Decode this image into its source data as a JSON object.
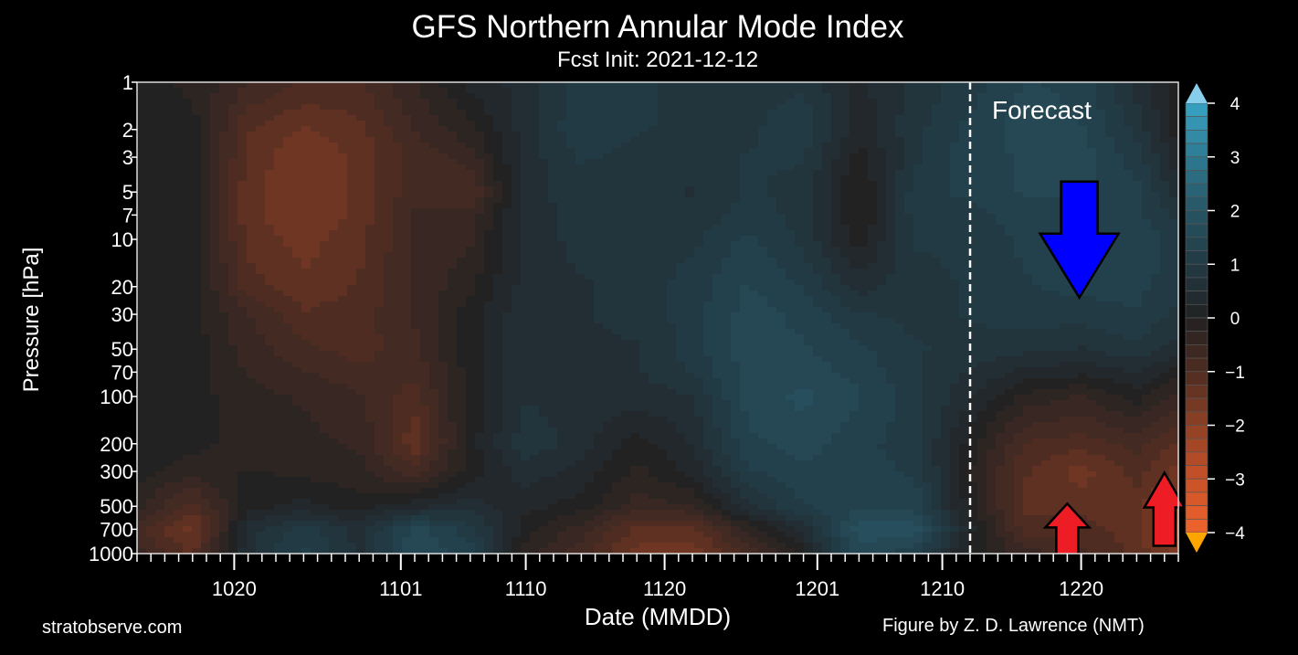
{
  "chart_data": {
    "type": "heatmap",
    "title": "GFS Northern Annular Mode Index",
    "subtitle": "Fcst Init: 2021-12-12",
    "xlabel": "Date (MMDD)",
    "ylabel": "Pressure [hPa]",
    "x_range": [
      "1013",
      "1227"
    ],
    "x_tick_labels": [
      "1020",
      "1101",
      "1110",
      "1120",
      "1201",
      "1210",
      "1220"
    ],
    "y_scale": "log",
    "y_range": [
      1000,
      1
    ],
    "y_tick_labels": [
      "1",
      "2",
      "3",
      "5",
      "7",
      "10",
      "20",
      "30",
      "50",
      "70",
      "100",
      "200",
      "300",
      "500",
      "700",
      "1000"
    ],
    "levels": [
      1,
      2,
      3,
      5,
      7,
      10,
      20,
      30,
      50,
      70,
      100,
      200,
      300,
      500,
      700,
      1000
    ],
    "dates": [
      "1013",
      "1017",
      "1021",
      "1025",
      "1029",
      "1102",
      "1106",
      "1110",
      "1114",
      "1118",
      "1122",
      "1126",
      "1130",
      "1204",
      "1208",
      "1212",
      "1216",
      "1220",
      "1224",
      "1227"
    ],
    "values_by_date": [
      [
        0,
        0,
        0,
        0,
        0,
        0,
        0,
        0,
        0,
        0,
        0,
        0,
        0,
        -0.3,
        -0.8,
        -0.5
      ],
      [
        -0.2,
        0,
        0,
        0,
        0,
        0,
        0,
        0,
        0,
        0,
        0,
        0,
        -0.3,
        -1,
        -1.5,
        -1.2
      ],
      [
        -0.6,
        -1.1,
        -1.2,
        -1.3,
        -1.3,
        -1.2,
        -1,
        -0.6,
        -0.5,
        -0.4,
        -0.3,
        -0.3,
        -0.1,
        0,
        0.5,
        0.6
      ],
      [
        -0.9,
        -1.4,
        -1.6,
        -1.6,
        -1.6,
        -1.5,
        -1.3,
        -1.1,
        -0.8,
        -0.6,
        -0.4,
        -0.3,
        -0.2,
        0.2,
        1,
        1.2
      ],
      [
        -0.9,
        -1.2,
        -1.3,
        -1.3,
        -1.3,
        -1.2,
        -1.1,
        -1,
        -1,
        -0.8,
        -0.6,
        -0.4,
        -0.3,
        0,
        0.5,
        0.6
      ],
      [
        -0.4,
        -0.6,
        -0.8,
        -0.7,
        -0.6,
        -0.6,
        -0.6,
        -0.6,
        -0.7,
        -0.8,
        -1,
        -1.3,
        -0.8,
        0.3,
        1.5,
        1.6
      ],
      [
        0.2,
        -0.2,
        -0.5,
        -0.9,
        -0.5,
        -0.4,
        -0.2,
        0,
        0,
        0,
        0,
        0,
        0,
        0.5,
        1,
        1.2
      ],
      [
        0.5,
        0.5,
        0.5,
        0.5,
        0.5,
        0.5,
        0.5,
        0.6,
        0.6,
        0.6,
        0.6,
        0.8,
        0.5,
        0.2,
        0,
        -0.3
      ],
      [
        1,
        1.1,
        0.9,
        0.8,
        0.7,
        0.7,
        0.6,
        0.6,
        0.6,
        0.5,
        0.5,
        0.5,
        0.3,
        0,
        -0.5,
        -0.8
      ],
      [
        1.1,
        0.9,
        0.8,
        0.8,
        0.8,
        0.8,
        0.7,
        0.7,
        0.6,
        0.6,
        0.5,
        0,
        -0.2,
        -0.5,
        -1.2,
        -1.5
      ],
      [
        0.6,
        0.8,
        0.7,
        0.6,
        0.7,
        0.8,
        1,
        1,
        1,
        0.9,
        0.6,
        0.4,
        0.2,
        -0.4,
        -1.2,
        -1.6
      ],
      [
        0.8,
        0.8,
        0.9,
        0.9,
        1,
        1.2,
        1.4,
        1.5,
        1.5,
        1.5,
        1.5,
        1.3,
        1.1,
        0.6,
        -0.3,
        -0.8
      ],
      [
        0.8,
        1.1,
        0.9,
        0.8,
        0.8,
        0.8,
        1.1,
        1.3,
        1.4,
        1.5,
        1.7,
        1.5,
        1.3,
        1.1,
        0.5,
        0
      ],
      [
        0.3,
        0.2,
        0,
        -0.2,
        -0.2,
        0,
        0.5,
        0.9,
        1.2,
        1.3,
        1.4,
        1.2,
        1.2,
        1.3,
        1.8,
        1.5
      ],
      [
        0.7,
        0.8,
        0.8,
        1,
        1,
        0.9,
        0.8,
        0.8,
        0.9,
        0.9,
        1,
        1,
        1.1,
        1.3,
        1.8,
        1.2
      ],
      [
        1,
        1.2,
        1.3,
        1.2,
        1,
        0.9,
        0.9,
        0.9,
        0.8,
        0.6,
        0.4,
        0,
        -0.1,
        0,
        0.2,
        0
      ],
      [
        1.4,
        1.5,
        1.4,
        1.4,
        1.3,
        1.2,
        1.1,
        1,
        0.7,
        0.3,
        -0.2,
        -0.9,
        -1.1,
        -1.2,
        -1,
        -0.5
      ],
      [
        1.3,
        1.4,
        1.5,
        1.4,
        1.3,
        1.3,
        1.2,
        1,
        0.6,
        0.2,
        -0.4,
        -1,
        -1.5,
        -1.2,
        -1,
        -0.8
      ],
      [
        0.5,
        0.8,
        1,
        1.2,
        1.2,
        1.3,
        1.2,
        1.1,
        0.8,
        0.4,
        0,
        -0.8,
        -1,
        -1.3,
        -1.3,
        -1.2
      ],
      [
        0,
        0,
        0.2,
        0.5,
        0.8,
        1,
        1,
        0.8,
        0.5,
        0,
        -0.5,
        -1.2,
        -1.5,
        -1.8,
        -2,
        -1.8
      ]
    ],
    "forecast_start": "1212",
    "forecast_label": "Forecast",
    "colorbar": {
      "range": [
        -4,
        4
      ],
      "tick_labels": [
        "4",
        "3",
        "2",
        "1",
        "0",
        "−1",
        "−2",
        "−3",
        "−4"
      ],
      "colors": {
        "-4": "#f0642c",
        "-3": "#c85228",
        "-2": "#8e4024",
        "-1": "#4e2c22",
        "0": "#222222",
        "1": "#223a44",
        "2": "#275564",
        "3": "#2e7a92",
        "4": "#38a4c4"
      },
      "over_color": "#87ceeb",
      "under_color": "#ffa500"
    },
    "annotations": [
      {
        "type": "arrow",
        "direction": "down",
        "color": "#0000ff",
        "date": "1220",
        "level": 20
      },
      {
        "type": "arrow",
        "direction": "up",
        "color": "#ee1c24",
        "date": "1219",
        "level": 700
      },
      {
        "type": "arrow",
        "direction": "up",
        "color": "#ee1c24",
        "date": "1226",
        "level": 400
      }
    ],
    "grid": false
  },
  "footer": {
    "website": "stratobserve.com",
    "credit": "Figure by Z. D. Lawrence (NMT)"
  }
}
